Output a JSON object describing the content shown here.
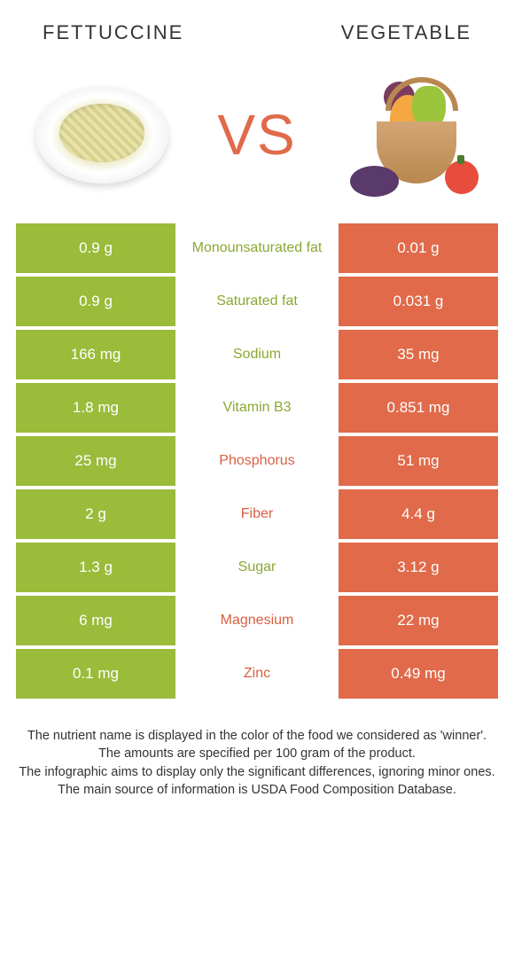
{
  "header": {
    "left_title": "FETTUCCINE",
    "right_title": "VEGETABLE"
  },
  "vs_label": "VS",
  "colors": {
    "left": "#9bbb3b",
    "right": "#e06a4a",
    "left_text": "#8aa832",
    "right_text": "#d85f40",
    "footer_text": "#333333"
  },
  "rows": [
    {
      "left": "0.9 g",
      "label": "Monounsaturated fat",
      "right": "0.01 g",
      "winner": "left"
    },
    {
      "left": "0.9 g",
      "label": "Saturated fat",
      "right": "0.031 g",
      "winner": "left"
    },
    {
      "left": "166 mg",
      "label": "Sodium",
      "right": "35 mg",
      "winner": "left"
    },
    {
      "left": "1.8 mg",
      "label": "Vitamin B3",
      "right": "0.851 mg",
      "winner": "left"
    },
    {
      "left": "25 mg",
      "label": "Phosphorus",
      "right": "51 mg",
      "winner": "right"
    },
    {
      "left": "2 g",
      "label": "Fiber",
      "right": "4.4 g",
      "winner": "right"
    },
    {
      "left": "1.3 g",
      "label": "Sugar",
      "right": "3.12 g",
      "winner": "left"
    },
    {
      "left": "6 mg",
      "label": "Magnesium",
      "right": "22 mg",
      "winner": "right"
    },
    {
      "left": "0.1 mg",
      "label": "Zinc",
      "right": "0.49 mg",
      "winner": "right"
    }
  ],
  "footer_lines": [
    "The nutrient name is displayed in the color of the food we considered as 'winner'.",
    "The amounts are specified per 100 gram of the product.",
    "The infographic aims to display only the significant differences, ignoring minor ones.",
    "The main source of information is USDA Food Composition Database."
  ]
}
